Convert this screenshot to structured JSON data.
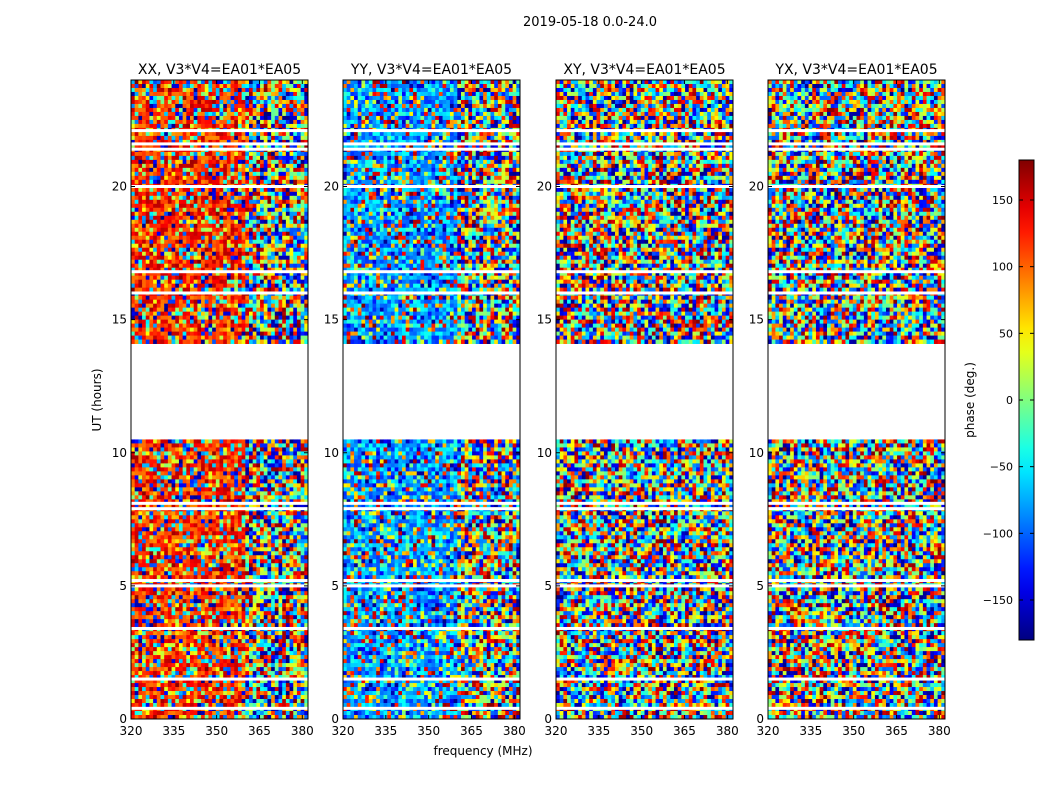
{
  "figure": {
    "suptitle": "2019-05-18 0.0-24.0"
  },
  "chart_data": {
    "type": "heatmap",
    "ylabel": "UT (hours)",
    "xlabel": "frequency (MHz)",
    "xlim": [
      320,
      382
    ],
    "ylim": [
      0,
      24
    ],
    "xticks": [
      320,
      335,
      350,
      365,
      380
    ],
    "yticks": [
      0,
      5,
      10,
      15,
      20
    ],
    "gaps_hours": [
      [
        10.5,
        14.1
      ]
    ],
    "flag_rows_hours": [
      0.4,
      1.5,
      3.4,
      5.0,
      5.2,
      7.9,
      8.1,
      12.0,
      16.0,
      16.8,
      20.0,
      21.4,
      21.6,
      22.1
    ],
    "panels": [
      {
        "title": "XX, V3*V4=EA01*EA05",
        "pol": "XX",
        "coherent_phase_deg": 120,
        "coherent_to_mhz": 360
      },
      {
        "title": "YY, V3*V4=EA01*EA05",
        "pol": "YY",
        "coherent_phase_deg": -80,
        "coherent_to_mhz": 360
      },
      {
        "title": "XY, V3*V4=EA01*EA05",
        "pol": "XY",
        "coherent_phase_deg": null,
        "coherent_to_mhz": null
      },
      {
        "title": "YX, V3*V4=EA01*EA05",
        "pol": "YX",
        "coherent_phase_deg": null,
        "coherent_to_mhz": null
      }
    ],
    "colorbar": {
      "label": "phase (deg.)",
      "range": [
        -180,
        180
      ],
      "ticks": [
        -150,
        -100,
        -50,
        0,
        50,
        100,
        150
      ],
      "tick_labels": [
        "−150",
        "−100",
        "−50",
        "0",
        "50",
        "100",
        "150"
      ],
      "colormap": "jet"
    }
  }
}
